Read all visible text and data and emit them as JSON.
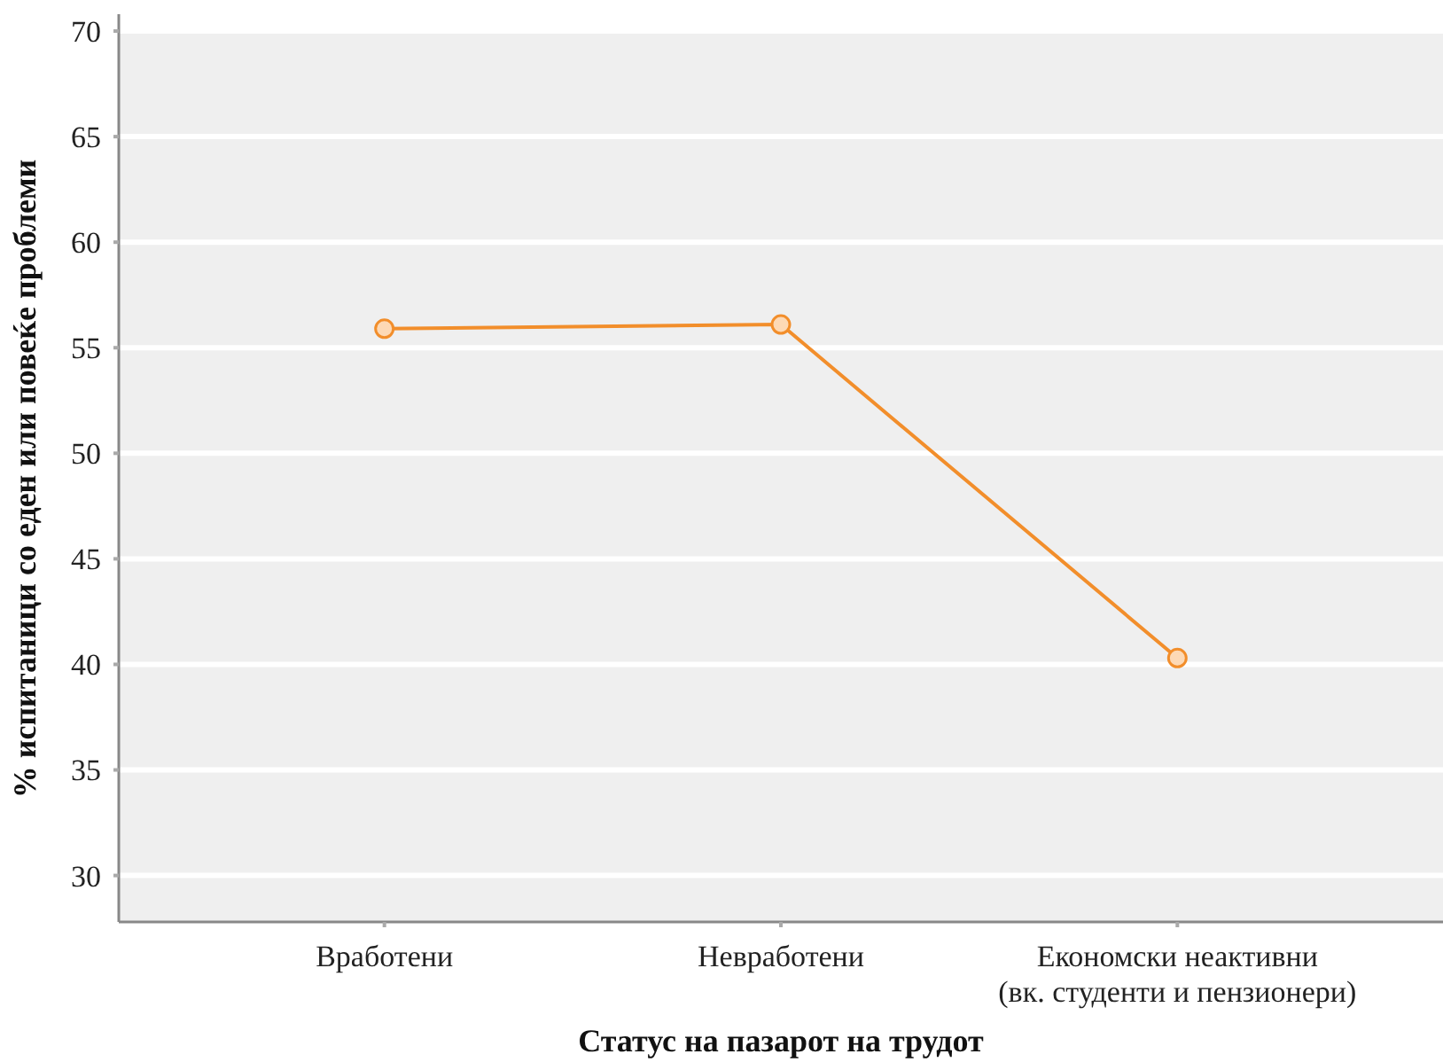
{
  "chart_data": {
    "type": "line",
    "xlabel": "Статус на пазарот на трудот",
    "ylabel": "% испитаници со еден или повеќе проблеми",
    "categories": [
      "Вработени",
      "Невработени",
      "Економски неактивни\n(вк. студенти и пензионери)"
    ],
    "series": [
      {
        "color": "#f28e2b",
        "values": [
          55.9,
          56.1,
          40.3
        ]
      }
    ],
    "ylim": [
      27.8,
      70.8
    ],
    "yticks": [
      30,
      35,
      40,
      45,
      50,
      55,
      60,
      65,
      70
    ],
    "grid": "y",
    "marker": "circle",
    "line_style": "solid"
  }
}
